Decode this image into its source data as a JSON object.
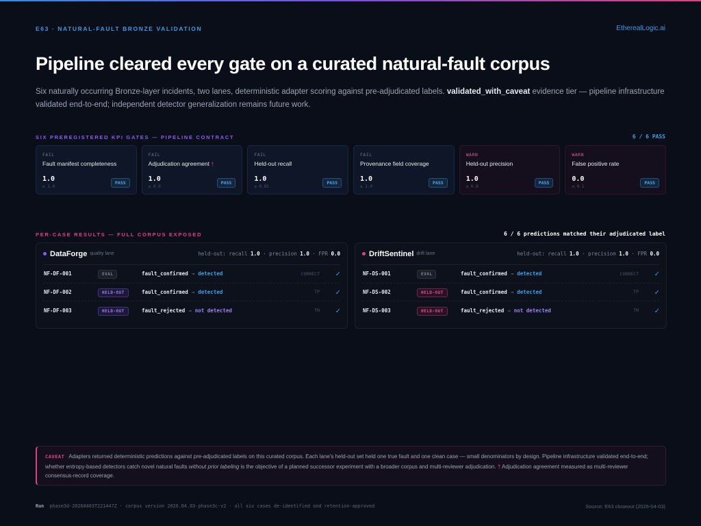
{
  "header": {
    "kicker": "E63 · NATURAL-FAULT BRONZE VALIDATION",
    "brand": "EtherealLogic.ai",
    "title": "Pipeline cleared every gate on a curated natural-fault corpus",
    "lede_pre": "Six naturally occurring Bronze-layer incidents, two lanes, deterministic adapter scoring against pre-adjudicated labels. ",
    "lede_bold": "validated_with_caveat",
    "lede_post": " evidence tier — pipeline infrastructure validated end-to-end; independent detector generalization remains future work."
  },
  "gates_section": {
    "title": "SIX PREREGISTERED KPI GATES — PIPELINE CONTRACT",
    "summary": "6 / 6 PASS",
    "gates": [
      {
        "severity": "FAIL",
        "name": "Fault manifest completeness",
        "dagger": "",
        "value": "1.0",
        "threshold": "≥ 1.0",
        "result": "PASS"
      },
      {
        "severity": "FAIL",
        "name": "Adjudication agreement",
        "dagger": "†",
        "value": "1.0",
        "threshold": "≥ 0.9",
        "result": "PASS"
      },
      {
        "severity": "FAIL",
        "name": "Held-out recall",
        "dagger": "",
        "value": "1.0",
        "threshold": "≥ 0.85",
        "result": "PASS"
      },
      {
        "severity": "FAIL",
        "name": "Provenance field coverage",
        "dagger": "",
        "value": "1.0",
        "threshold": "≥ 1.0",
        "result": "PASS"
      },
      {
        "severity": "WARN",
        "name": "Held-out precision",
        "dagger": "",
        "value": "1.0",
        "threshold": "≥ 0.8",
        "result": "PASS"
      },
      {
        "severity": "WARN",
        "name": "False positive rate",
        "dagger": "",
        "value": "0.0",
        "threshold": "≤ 0.1",
        "result": "PASS"
      }
    ]
  },
  "cases_section": {
    "title": "PER-CASE RESULTS — FULL CORPUS EXPOSED",
    "summary": "6 / 6 predictions matched their adjudicated label",
    "lanes": [
      {
        "name": "DataForge",
        "sub": "quality lane",
        "color": "#8b5cf6",
        "m_prefix": "held-out: recall ",
        "recall": "1.0",
        "m_prec": " · precision ",
        "precision": "1.0",
        "m_fpr": " · FPR ",
        "fpr": "0.0",
        "rows": [
          {
            "id": "NF-DF-001",
            "tag": "EVAL",
            "label": "fault_confirmed",
            "pred": "detected",
            "result": "CORRECT"
          },
          {
            "id": "NF-DF-002",
            "tag": "HELD-OUT",
            "label": "fault_confirmed",
            "pred": "detected",
            "result": "TP"
          },
          {
            "id": "NF-DF-003",
            "tag": "HELD-OUT",
            "label": "fault_rejected",
            "pred": "not detected",
            "result": "TN"
          }
        ]
      },
      {
        "name": "DriftSentinel",
        "sub": "drift lane",
        "color": "#e0407f",
        "m_prefix": "held-out: recall ",
        "recall": "1.0",
        "m_prec": " · precision ",
        "precision": "1.0",
        "m_fpr": " · FPR ",
        "fpr": "0.0",
        "rows": [
          {
            "id": "NF-DS-001",
            "tag": "EVAL",
            "label": "fault_confirmed",
            "pred": "detected",
            "result": "CORRECT"
          },
          {
            "id": "NF-DS-002",
            "tag": "HELD-OUT",
            "label": "fault_confirmed",
            "pred": "detected",
            "result": "TP"
          },
          {
            "id": "NF-DS-003",
            "tag": "HELD-OUT",
            "label": "fault_rejected",
            "pred": "not detected",
            "result": "TN"
          }
        ]
      }
    ]
  },
  "caveat": {
    "label": "CAVEAT",
    "text1": "Adapters returned deterministic predictions against pre-adjudicated labels on this curated corpus. Each lane's held-out set held one true fault and one clean case — small denominators by design. Pipeline infrastructure validated end-to-end; whether entropy-based detectors catch novel natural faults ",
    "italic": "without prior labeling",
    "text2": " is the objective of a planned successor experiment with a broader corpus and multi-reviewer adjudication. ",
    "dagger": "†",
    "text3": " Adjudication agreement measured as multi-reviewer consensus-record coverage."
  },
  "footer": {
    "run_label": "Run",
    "run_id": "phase3d-20260403T221447Z",
    "sep": " · ",
    "corpus": "corpus version 2026.04.03-phase3c-v2",
    "note": "all six cases de-identified and retention-approved",
    "source": "Source: E63 closeout (2026-04-03)"
  },
  "arrow": "→",
  "check": "✓"
}
